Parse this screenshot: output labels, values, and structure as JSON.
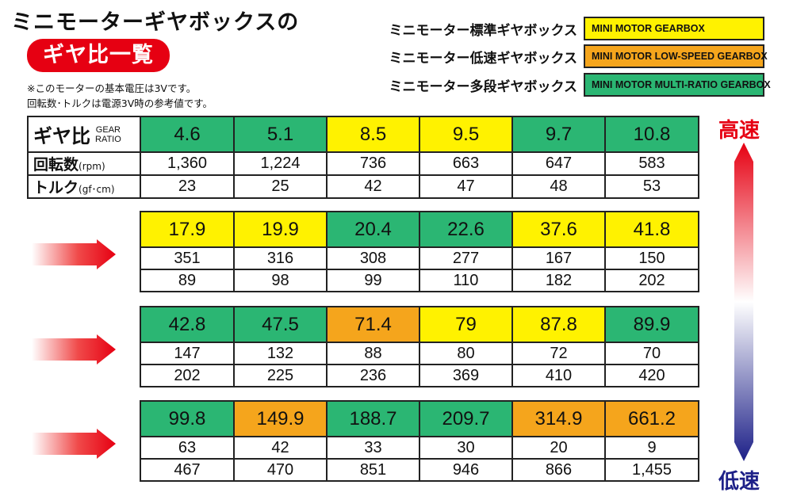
{
  "header": {
    "title_line1": "ミニモーターギヤボックスの",
    "title_line2": "ギヤ比一覧",
    "note_line1": "※このモーターの基本電圧は3Vです。",
    "note_line2": "回転数･トルクは電源3V時の参考値です。"
  },
  "legend": [
    {
      "label": "ミニモーター標準ギヤボックス",
      "swatch": "MINI MOTOR GEARBOX",
      "color": "#fff200"
    },
    {
      "label": "ミニモーター低速ギヤボックス",
      "swatch": "MINI MOTOR LOW-SPEED GEARBOX",
      "color": "#f5a51c"
    },
    {
      "label": "ミニモーター多段ギヤボックス",
      "swatch": "MINI MOTOR MULTI-RATIO GEARBOX",
      "color": "#2bb673"
    }
  ],
  "row_headers": {
    "ratio_main": "ギヤ比",
    "ratio_en_1": "GEAR",
    "ratio_en_2": "RATIO",
    "rpm_main": "回転数",
    "rpm_unit": "(rpm)",
    "torque_main": "トルク",
    "torque_unit": "(gf･cm)"
  },
  "speed": {
    "high": "高速",
    "low": "低速"
  },
  "blocks": [
    {
      "ratios": [
        "4.6",
        "5.1",
        "8.5",
        "9.5",
        "9.7",
        "10.8"
      ],
      "colors": [
        "green",
        "green",
        "yellow",
        "yellow",
        "green",
        "green"
      ],
      "rpm": [
        "1,360",
        "1,224",
        "736",
        "663",
        "647",
        "583"
      ],
      "torque": [
        "23",
        "25",
        "42",
        "47",
        "48",
        "53"
      ]
    },
    {
      "ratios": [
        "17.9",
        "19.9",
        "20.4",
        "22.6",
        "37.6",
        "41.8"
      ],
      "colors": [
        "yellow",
        "yellow",
        "green",
        "green",
        "yellow",
        "yellow"
      ],
      "rpm": [
        "351",
        "316",
        "308",
        "277",
        "167",
        "150"
      ],
      "torque": [
        "89",
        "98",
        "99",
        "110",
        "182",
        "202"
      ]
    },
    {
      "ratios": [
        "42.8",
        "47.5",
        "71.4",
        "79",
        "87.8",
        "89.9"
      ],
      "colors": [
        "green",
        "green",
        "orange",
        "yellow",
        "yellow",
        "green"
      ],
      "rpm": [
        "147",
        "132",
        "88",
        "80",
        "72",
        "70"
      ],
      "torque": [
        "202",
        "225",
        "236",
        "369",
        "410",
        "420"
      ]
    },
    {
      "ratios": [
        "99.8",
        "149.9",
        "188.7",
        "209.7",
        "314.9",
        "661.2"
      ],
      "colors": [
        "green",
        "orange",
        "green",
        "green",
        "orange",
        "orange"
      ],
      "rpm": [
        "63",
        "42",
        "33",
        "30",
        "20",
        "9"
      ],
      "torque": [
        "467",
        "470",
        "851",
        "946",
        "866",
        "1,455"
      ]
    }
  ]
}
